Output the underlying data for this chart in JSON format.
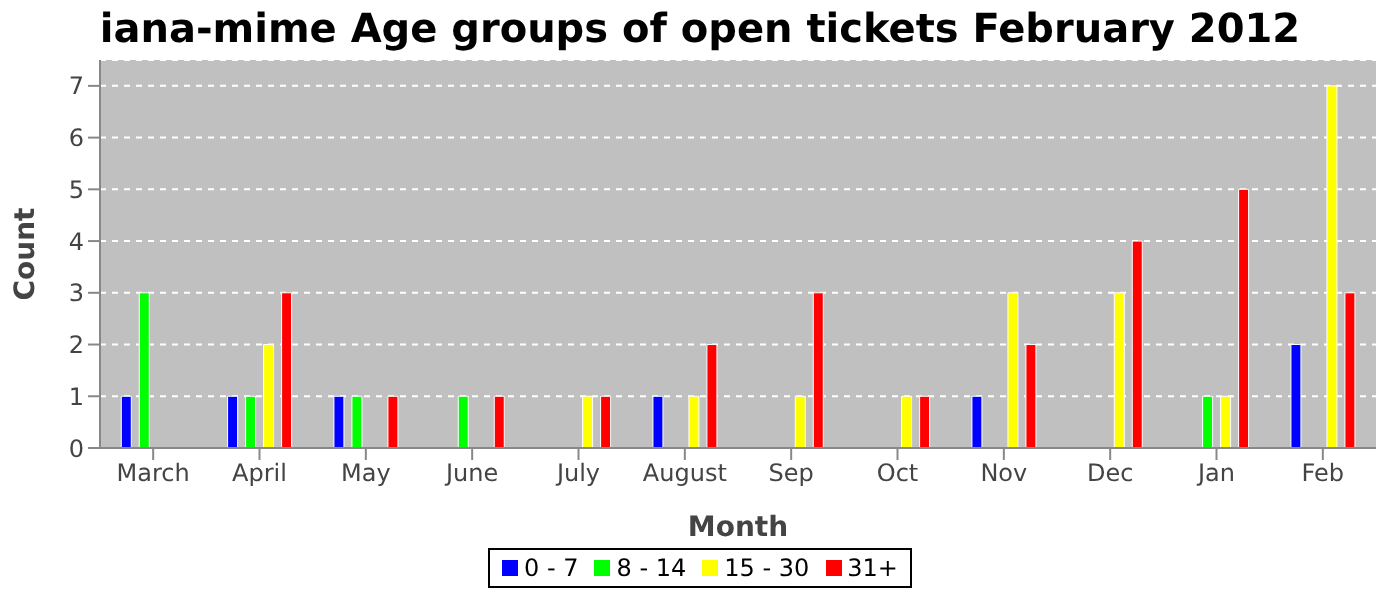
{
  "chart_data": {
    "type": "bar",
    "title": "iana-mime Age groups of open tickets February 2012",
    "xlabel": "Month",
    "ylabel": "Count",
    "categories": [
      "March",
      "April",
      "May",
      "June",
      "July",
      "August",
      "Sep",
      "Oct",
      "Nov",
      "Dec",
      "Jan",
      "Feb"
    ],
    "series": [
      {
        "name": "0 - 7",
        "color": "#0000ff",
        "values": [
          1,
          1,
          1,
          0,
          0,
          1,
          0,
          0,
          1,
          0,
          0,
          2
        ]
      },
      {
        "name": "8 - 14",
        "color": "#00ff00",
        "values": [
          3,
          1,
          1,
          1,
          0,
          0,
          0,
          0,
          0,
          0,
          1,
          0
        ]
      },
      {
        "name": "15 - 30",
        "color": "#ffff00",
        "values": [
          0,
          2,
          0,
          0,
          1,
          1,
          1,
          1,
          3,
          3,
          1,
          7
        ]
      },
      {
        "name": "31+",
        "color": "#ff0000",
        "values": [
          0,
          3,
          1,
          1,
          1,
          2,
          3,
          1,
          2,
          4,
          5,
          3
        ]
      }
    ],
    "ylim": [
      0,
      7.5
    ],
    "yticks": [
      0,
      1,
      2,
      3,
      4,
      5,
      6,
      7
    ],
    "grid": "y",
    "legend": "bottom"
  }
}
